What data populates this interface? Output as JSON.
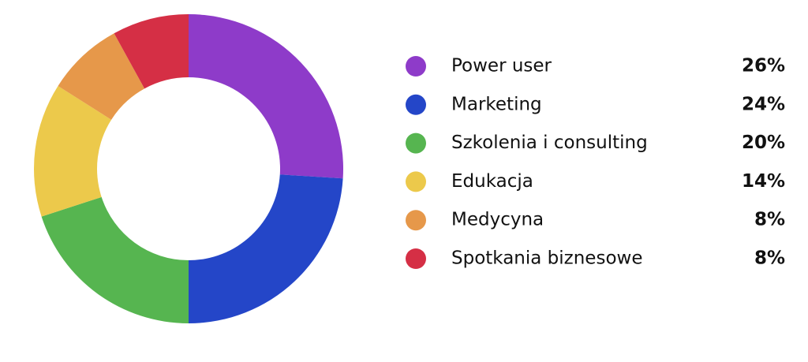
{
  "chart_data": {
    "type": "donut",
    "categories": [
      "Power user",
      "Marketing",
      "Szkolenia i consulting",
      "Edukacja",
      "Medycyna",
      "Spotkania biznesowe"
    ],
    "values": [
      26,
      24,
      20,
      14,
      8,
      8
    ],
    "value_labels": [
      "26%",
      "24%",
      "20%",
      "14%",
      "8%",
      "8%"
    ],
    "colors": [
      "#8e3bc9",
      "#2446c8",
      "#56b550",
      "#ecc94b",
      "#e6984a",
      "#d52f45"
    ],
    "legend": "right"
  }
}
